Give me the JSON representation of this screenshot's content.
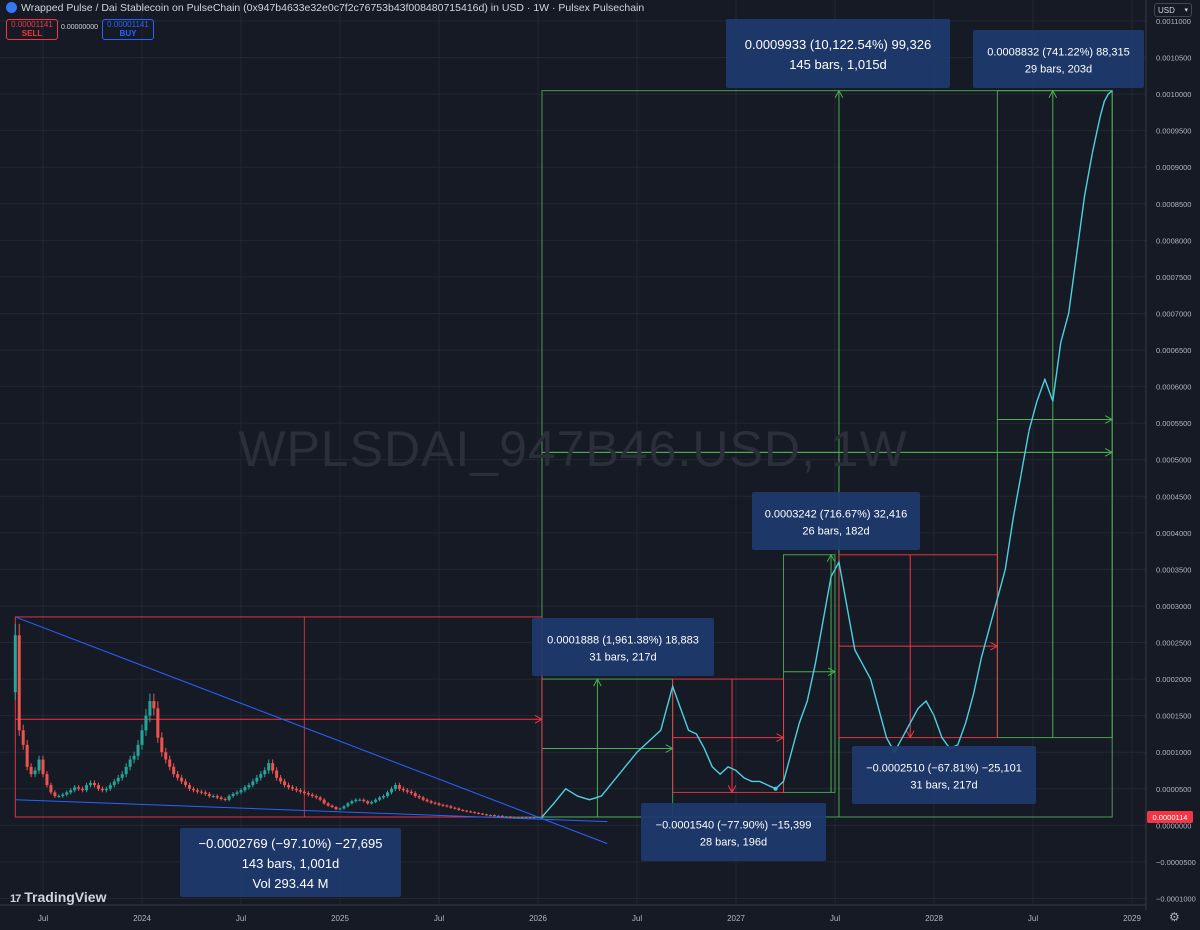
{
  "header": {
    "title": "Wrapped Pulse / Dai Stablecoin on PulseChain (0x947b4633e32e0c7f2c76753b43f008480715416d) in USD · 1W · Pulsex Pulsechain"
  },
  "trade": {
    "sell_price": "0.00001141",
    "sell_label": "SELL",
    "spread": "0.00000000",
    "buy_price": "0.00001141",
    "buy_label": "BUY"
  },
  "currency_selector": "USD",
  "watermark": "WPLSDAI_947B46.USD, 1W",
  "branding": "TradingView",
  "colors": {
    "background": "#161a25",
    "grid": "#232733",
    "candle_up": "#26a69a",
    "candle_down": "#ef5350",
    "projection": "#4dd0e1",
    "trendline": "#2962ff",
    "measure_up": "#4caf50",
    "measure_down": "#f23645",
    "label_box": "#1e3a6e",
    "price_badge": "#f23645"
  },
  "chart_data": {
    "type": "line",
    "title": "WPLSDAI_947B46.USD, 1W",
    "xlabel": "",
    "ylabel": "",
    "x_ticks": [
      "Jul",
      "2024",
      "Jul",
      "2025",
      "Jul",
      "2026",
      "Jul",
      "2027",
      "Jul",
      "2028",
      "Jul",
      "2029"
    ],
    "y_ticks": [
      "0.0011000",
      "0.0010500",
      "0.0010000",
      "0.0009500",
      "0.0009000",
      "0.0008500",
      "0.0008000",
      "0.0007500",
      "0.0007000",
      "0.0006500",
      "0.0006000",
      "0.0005500",
      "0.0005000",
      "0.0004500",
      "0.0004000",
      "0.0003500",
      "0.0003000",
      "0.0002500",
      "0.0002000",
      "0.0001500",
      "0.0001000",
      "0.0000500",
      "0.0000000",
      "−0.0000500",
      "−0.0001000"
    ],
    "ylim": [
      -0.000105,
      0.00111
    ],
    "current_price_label": "0.0000114",
    "grid": true,
    "series": [
      {
        "kind": "candles",
        "x": [
          2023.36,
          2023.38,
          2023.4,
          2023.42,
          2023.44,
          2023.46,
          2023.48,
          2023.5,
          2023.52,
          2023.54,
          2023.56,
          2023.58,
          2023.6,
          2023.62,
          2023.64,
          2023.66,
          2023.68,
          2023.7,
          2023.72,
          2023.74,
          2023.76,
          2023.78,
          2023.8,
          2023.82,
          2023.84,
          2023.86,
          2023.88,
          2023.9,
          2023.92,
          2023.94,
          2023.96,
          2023.98,
          2024.0,
          2024.02,
          2024.04,
          2024.06,
          2024.08,
          2024.1,
          2024.12,
          2024.14,
          2024.16,
          2024.18,
          2024.2,
          2024.22,
          2024.24,
          2024.26,
          2024.28,
          2024.3,
          2024.32,
          2024.34,
          2024.36,
          2024.38,
          2024.4,
          2024.42,
          2024.44,
          2024.46,
          2024.48,
          2024.5,
          2024.52,
          2024.54,
          2024.56,
          2024.58,
          2024.6,
          2024.62,
          2024.64,
          2024.66,
          2024.68,
          2024.7,
          2024.72,
          2024.74,
          2024.76,
          2024.78,
          2024.8,
          2024.82,
          2024.84,
          2024.86,
          2024.88,
          2024.9,
          2024.92,
          2024.94,
          2024.96,
          2024.98,
          2025.0,
          2025.02,
          2025.04,
          2025.06,
          2025.08,
          2025.1,
          2025.12,
          2025.14,
          2025.16,
          2025.18,
          2025.2,
          2025.22,
          2025.24,
          2025.26,
          2025.28,
          2025.3,
          2025.32,
          2025.34,
          2025.36,
          2025.38,
          2025.4,
          2025.42,
          2025.44,
          2025.46,
          2025.48,
          2025.5,
          2025.52,
          2025.54,
          2025.56,
          2025.58,
          2025.6,
          2025.62,
          2025.64,
          2025.66,
          2025.68,
          2025.7,
          2025.72,
          2025.74,
          2025.76,
          2025.78,
          2025.8,
          2025.82,
          2025.84,
          2025.86,
          2025.88,
          2025.9,
          2025.92,
          2025.94,
          2025.96,
          2025.98,
          2026.0,
          2026.02
        ],
        "close": [
          0.00026,
          0.00013,
          0.00011,
          8e-05,
          7e-05,
          7.5e-05,
          9e-05,
          7e-05,
          5.5e-05,
          4.5e-05,
          4e-05,
          4e-05,
          4.2e-05,
          4.5e-05,
          4.8e-05,
          5.2e-05,
          5e-05,
          4.8e-05,
          5.5e-05,
          5.8e-05,
          5.5e-05,
          5e-05,
          4.8e-05,
          5e-05,
          5.5e-05,
          6e-05,
          6.5e-05,
          7e-05,
          8e-05,
          9e-05,
          9.5e-05,
          0.00011,
          0.00013,
          0.00015,
          0.00017,
          0.00016,
          0.00012,
          0.0001,
          9e-05,
          8e-05,
          7e-05,
          6.5e-05,
          6e-05,
          5.5e-05,
          5e-05,
          4.8e-05,
          4.6e-05,
          4.5e-05,
          4.3e-05,
          4e-05,
          4e-05,
          3.8e-05,
          3.6e-05,
          3.5e-05,
          4e-05,
          4.3e-05,
          4.5e-05,
          4.8e-05,
          5.2e-05,
          5.5e-05,
          6e-05,
          6.5e-05,
          7e-05,
          7.5e-05,
          8.5e-05,
          7.5e-05,
          6.5e-05,
          6e-05,
          5.5e-05,
          5.2e-05,
          5e-05,
          4.8e-05,
          4.6e-05,
          4.4e-05,
          4.2e-05,
          4e-05,
          3.8e-05,
          3.5e-05,
          3e-05,
          2.7e-05,
          2.5e-05,
          2.2e-05,
          2.3e-05,
          2.6e-05,
          3e-05,
          3.3e-05,
          3.5e-05,
          3.5e-05,
          3.3e-05,
          3e-05,
          3.2e-05,
          3.5e-05,
          3.8e-05,
          4e-05,
          4.5e-05,
          5e-05,
          5.5e-05,
          5e-05,
          4.8e-05,
          4.6e-05,
          4.4e-05,
          4e-05,
          3.8e-05,
          3.5e-05,
          3.3e-05,
          3.1e-05,
          3e-05,
          2.8e-05,
          2.7e-05,
          2.6e-05,
          2.4e-05,
          2.3e-05,
          2.1e-05,
          2e-05,
          1.9e-05,
          1.8e-05,
          1.7e-05,
          1.6e-05,
          1.5e-05,
          1.4e-05,
          1.4e-05,
          1.3e-05,
          1.3e-05,
          1.2e-05,
          1.2e-05,
          1.1e-05,
          1.1e-05,
          1.1e-05,
          1.1e-05,
          1.1e-05,
          1.1e-05,
          1.1e-05,
          1.14e-05,
          1.14e-05
        ]
      },
      {
        "kind": "projection",
        "x": [
          2026.02,
          2026.08,
          2026.14,
          2026.2,
          2026.26,
          2026.32,
          2026.38,
          2026.44,
          2026.5,
          2026.56,
          2026.62,
          2026.68,
          2026.72,
          2026.76,
          2026.8,
          2026.84,
          2026.88,
          2026.92,
          2026.96,
          2027.0,
          2027.04,
          2027.08,
          2027.12,
          2027.16,
          2027.2,
          2027.24,
          2027.28,
          2027.32,
          2027.36,
          2027.4,
          2027.44,
          2027.48,
          2027.52,
          2027.56,
          2027.6,
          2027.64,
          2027.68,
          2027.72,
          2027.76,
          2027.8,
          2027.84,
          2027.88,
          2027.92,
          2027.96,
          2028.0,
          2028.04,
          2028.08,
          2028.12,
          2028.16,
          2028.2,
          2028.24,
          2028.28,
          2028.32,
          2028.36,
          2028.4,
          2028.44,
          2028.48,
          2028.52,
          2028.56,
          2028.6,
          2028.64,
          2028.68,
          2028.72,
          2028.76,
          2028.8,
          2028.84,
          2028.86,
          2028.88,
          2028.9
        ],
        "values": [
          1.14e-05,
          3e-05,
          5e-05,
          4e-05,
          3.5e-05,
          4e-05,
          6e-05,
          8e-05,
          0.0001,
          0.000115,
          0.00013,
          0.00019,
          0.00016,
          0.00013,
          0.000125,
          0.000105,
          8e-05,
          7e-05,
          8e-05,
          7.5e-05,
          6.5e-05,
          6e-05,
          6e-05,
          5.5e-05,
          5e-05,
          6e-05,
          0.0001,
          0.00014,
          0.00017,
          0.00022,
          0.00028,
          0.00034,
          0.00036,
          0.0003,
          0.00024,
          0.00022,
          0.0002,
          0.00016,
          0.00012,
          0.0001,
          0.00012,
          0.00014,
          0.00016,
          0.00017,
          0.00015,
          0.00012,
          0.000105,
          0.00011,
          0.00014,
          0.00018,
          0.00023,
          0.00027,
          0.00031,
          0.00035,
          0.00042,
          0.00048,
          0.00054,
          0.00058,
          0.00061,
          0.00058,
          0.00066,
          0.0007,
          0.00078,
          0.00086,
          0.00092,
          0.00097,
          0.00099,
          0.001,
          0.0010047
        ]
      }
    ],
    "annotations": [
      {
        "line1": "0.0009933 (10,122.54%) 99,326",
        "line2": "145 bars, 1,015d"
      },
      {
        "line1": "0.0008832 (741.22%) 88,315",
        "line2": "29 bars, 203d"
      },
      {
        "line1": "0.0003242 (716.67%) 32,416",
        "line2": "26 bars, 182d"
      },
      {
        "line1": "0.0001888 (1,961.38%) 18,883",
        "line2": "31 bars, 217d"
      },
      {
        "line1": "−0.0002510 (−67.81%) −25,101",
        "line2": "31 bars, 217d"
      },
      {
        "line1": "−0.0001540 (−77.90%) −15,399",
        "line2": "28 bars, 196d"
      },
      {
        "line1": "−0.0002769 (−97.10%) −27,695",
        "line2": "143 bars, 1,001d",
        "line3": "Vol 293.44 M"
      }
    ]
  }
}
